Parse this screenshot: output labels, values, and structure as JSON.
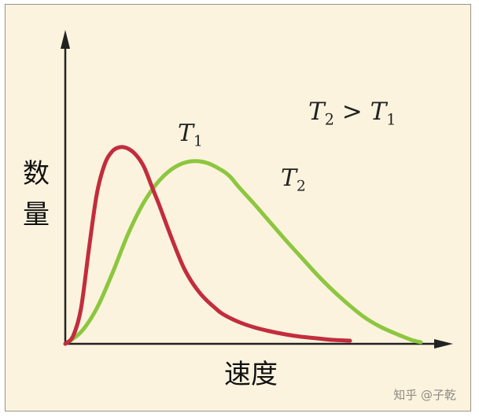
{
  "chart_data": {
    "type": "line",
    "xlabel": "速度",
    "ylabel": [
      "数",
      "量"
    ],
    "x_ticks": false,
    "y_ticks": false,
    "grid": false,
    "series": [
      {
        "name_italic": "T",
        "name_sub": "1",
        "color": "#c22d3d",
        "x": [
          0,
          10,
          20,
          30,
          40,
          50,
          60,
          70,
          80,
          90,
          100,
          110,
          120,
          130,
          140,
          150,
          160,
          170,
          180,
          190,
          200,
          220,
          240,
          260,
          280,
          300,
          320,
          340,
          362
        ],
        "y": [
          0,
          10,
          45,
          120,
          190,
          228,
          245,
          250,
          248,
          240,
          225,
          200,
          175,
          148,
          122,
          98,
          80,
          66,
          55,
          46,
          38,
          28,
          21,
          16,
          12,
          9,
          7,
          5,
          4
        ]
      },
      {
        "name_italic": "T",
        "name_sub": "2",
        "color": "#8dc63f",
        "x": [
          0,
          20,
          40,
          60,
          80,
          100,
          120,
          140,
          160,
          180,
          200,
          210,
          220,
          240,
          260,
          280,
          300,
          320,
          340,
          360,
          380,
          400,
          420,
          440,
          452
        ],
        "y": [
          0,
          15,
          45,
          90,
          140,
          180,
          208,
          225,
          232,
          230,
          220,
          212,
          200,
          178,
          155,
          132,
          110,
          88,
          68,
          50,
          34,
          22,
          13,
          5,
          2
        ]
      }
    ],
    "annotation": {
      "left_italic": "T",
      "left_sub": "2",
      "op": " > ",
      "right_italic": "T",
      "right_sub": "1"
    }
  },
  "watermark": "知乎 @子乾"
}
